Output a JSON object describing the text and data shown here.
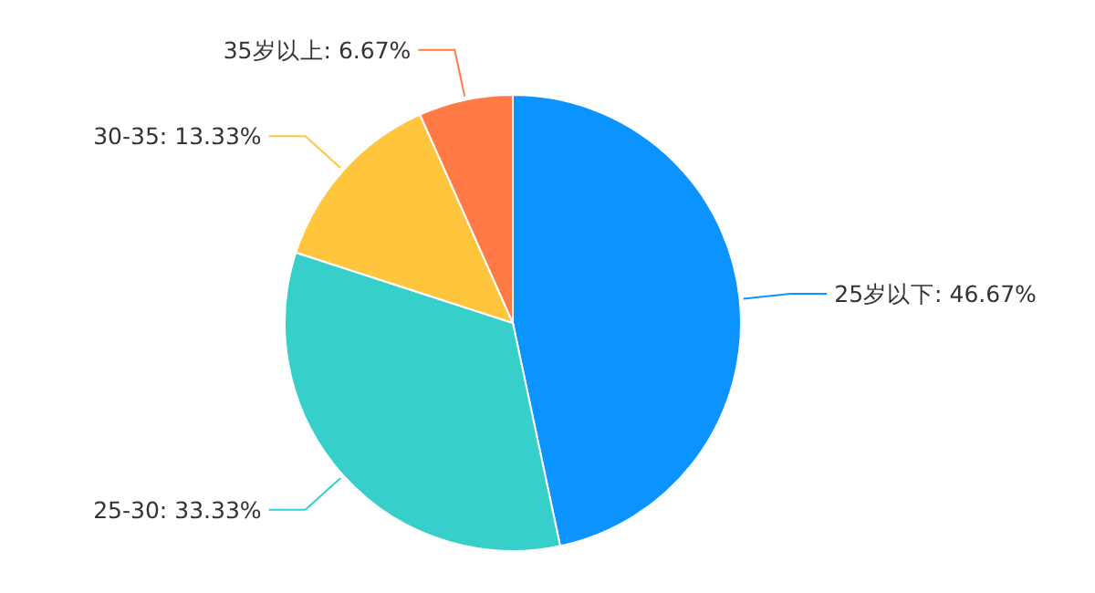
{
  "chart_data": {
    "type": "pie",
    "categories": [
      "25岁以下",
      "25-30",
      "30-35",
      "35岁以上"
    ],
    "values": [
      46.67,
      33.33,
      13.33,
      6.67
    ],
    "value_labels": [
      "46.67%",
      "33.33%",
      "13.33%",
      "6.67%"
    ],
    "colors": [
      "#0b94ff",
      "#36cfc9",
      "#ffc53d",
      "#ff7a45"
    ]
  }
}
